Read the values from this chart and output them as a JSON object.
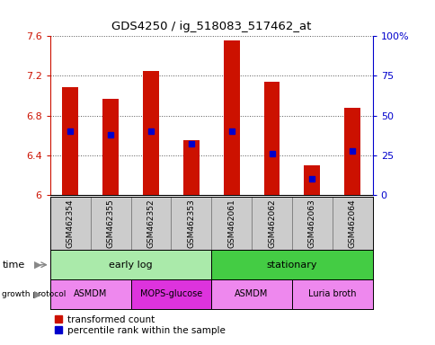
{
  "title": "GDS4250 / ig_518083_517462_at",
  "samples": [
    "GSM462354",
    "GSM462355",
    "GSM462352",
    "GSM462353",
    "GSM462061",
    "GSM462062",
    "GSM462063",
    "GSM462064"
  ],
  "transformed_counts": [
    7.09,
    6.97,
    7.25,
    6.55,
    7.56,
    7.14,
    6.3,
    6.88
  ],
  "percentile_ranks": [
    40,
    38,
    40,
    32,
    40,
    26,
    10,
    28
  ],
  "ylim_left": [
    6.0,
    7.6
  ],
  "ylim_right": [
    0,
    100
  ],
  "yticks_left": [
    6.0,
    6.4,
    6.8,
    7.2,
    7.6
  ],
  "yticks_right": [
    0,
    25,
    50,
    75,
    100
  ],
  "ytick_labels_left": [
    "6",
    "6.4",
    "6.8",
    "7.2",
    "7.6"
  ],
  "ytick_labels_right": [
    "0",
    "25",
    "50",
    "75",
    "100%"
  ],
  "bar_color": "#cc1100",
  "dot_color": "#0000cc",
  "bar_width": 0.4,
  "time_groups": [
    {
      "label": "early log",
      "start": 0,
      "end": 4,
      "color": "#aaeaaa"
    },
    {
      "label": "stationary",
      "start": 4,
      "end": 8,
      "color": "#44cc44"
    }
  ],
  "growth_groups": [
    {
      "label": "ASMDM",
      "start": 0,
      "end": 2,
      "color": "#ee88ee"
    },
    {
      "label": "MOPS-glucose",
      "start": 2,
      "end": 4,
      "color": "#dd33dd"
    },
    {
      "label": "ASMDM",
      "start": 4,
      "end": 6,
      "color": "#ee88ee"
    },
    {
      "label": "Luria broth",
      "start": 6,
      "end": 8,
      "color": "#ee88ee"
    }
  ],
  "grid_color": "#555555",
  "bg_color": "#ffffff",
  "plot_bg": "#ffffff",
  "sample_bg": "#cccccc",
  "legend_items": [
    {
      "label": "transformed count",
      "color": "#cc1100"
    },
    {
      "label": "percentile rank within the sample",
      "color": "#0000cc"
    }
  ]
}
